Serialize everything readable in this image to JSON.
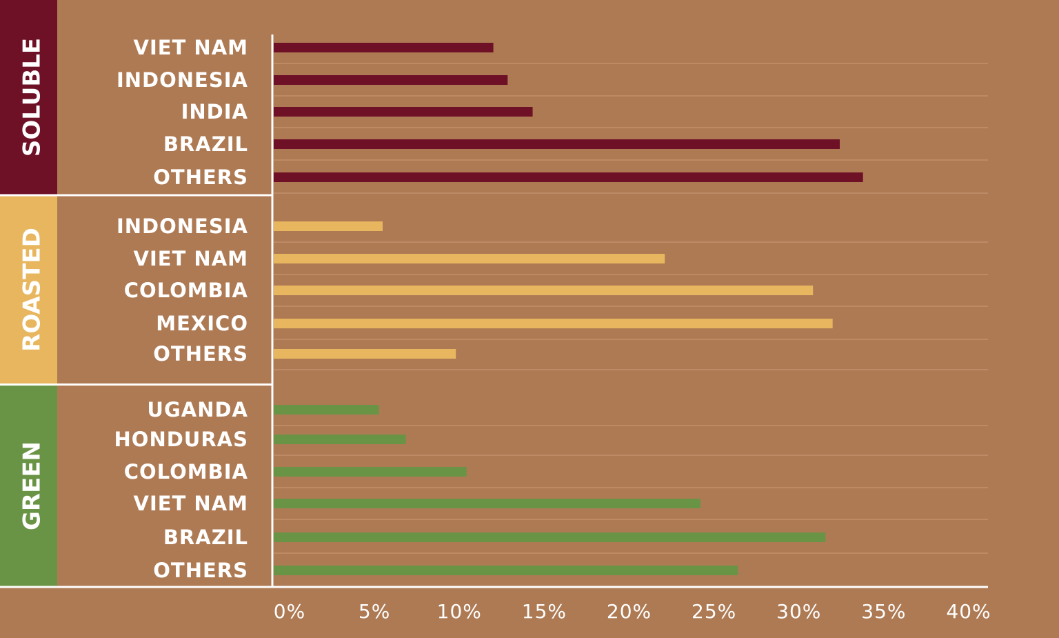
{
  "chart_data": {
    "type": "bar",
    "groups": [
      {
        "name": "SOLUBLE",
        "color": "#6e1127",
        "categories": [
          "VIET NAM",
          "INDONESIA",
          "INDIA",
          "BRAZIL",
          "OTHERS"
        ],
        "values": [
          12.3,
          13.1,
          14.5,
          31.7,
          33.0
        ]
      },
      {
        "name": "ROASTED",
        "color": "#e8b65f",
        "categories": [
          "INDONESIA",
          "VIET NAM",
          "COLOMBIA",
          "MEXICO",
          "OTHERS"
        ],
        "values": [
          6.1,
          21.9,
          30.2,
          31.3,
          10.2
        ]
      },
      {
        "name": "GREEN",
        "color": "#6a9445",
        "categories": [
          "UGANDA",
          "HONDURAS",
          "COLOMBIA",
          "VIET NAM",
          "BRAZIL",
          "OTHERS"
        ],
        "values": [
          5.9,
          7.4,
          10.8,
          23.9,
          30.9,
          26.0
        ]
      }
    ],
    "xlim": [
      0,
      40
    ],
    "xticks": [
      {
        "value": 0,
        "label": "0%"
      },
      {
        "value": 5,
        "label": "5%"
      },
      {
        "value": 10,
        "label": "10%"
      },
      {
        "value": 15,
        "label": "15%"
      },
      {
        "value": 20,
        "label": "20%"
      },
      {
        "value": 25,
        "label": "25%"
      },
      {
        "value": 30,
        "label": "30%"
      },
      {
        "value": 35,
        "label": "35%"
      },
      {
        "value": 40,
        "label": "40%"
      }
    ]
  }
}
